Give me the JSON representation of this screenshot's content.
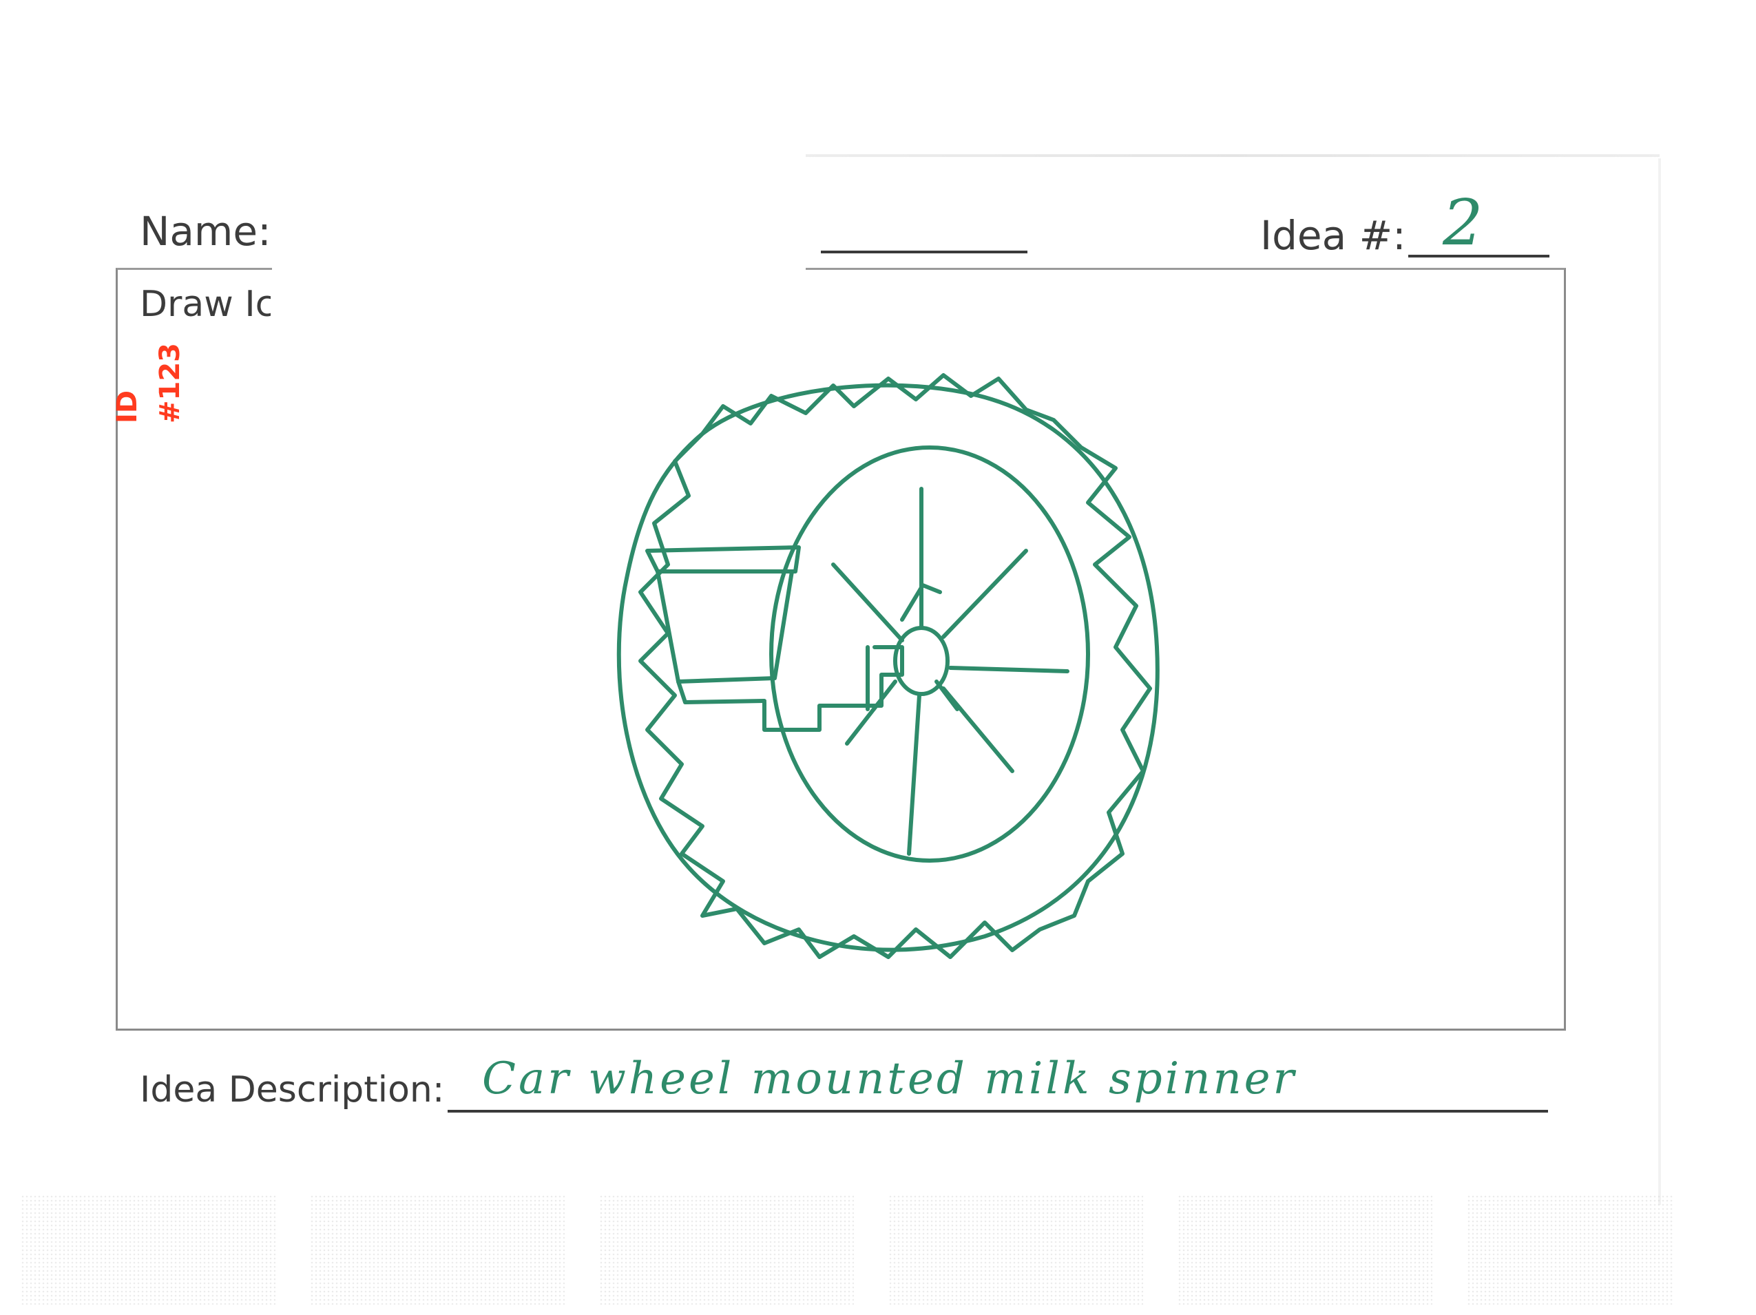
{
  "form": {
    "name_label": "Name:",
    "idea_number_label": "Idea #:",
    "draw_label": "Draw Ic",
    "description_label": "Idea Description:"
  },
  "handwritten": {
    "idea_number": "2",
    "description": "Car wheel mounted milk spinner"
  },
  "stamp": {
    "text": "ID #123",
    "color": "#ff3b1f"
  },
  "colors": {
    "ink": "#2e8b6a",
    "print": "#3c3c3c"
  },
  "sketch": {
    "icon": "wheel-mounted-milk-spinner-drawing"
  }
}
